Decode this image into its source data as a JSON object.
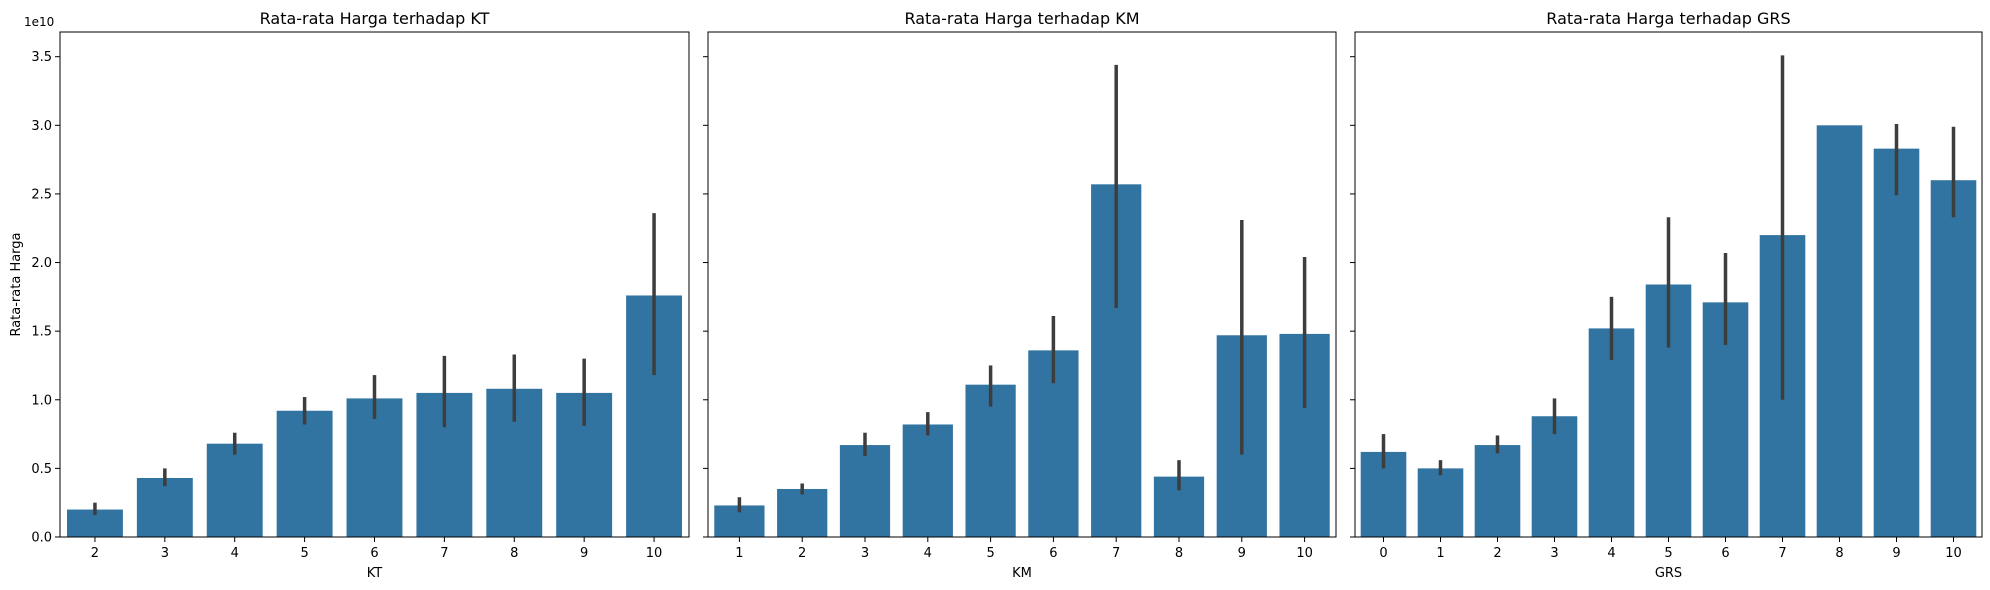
{
  "chart_data": [
    {
      "type": "bar",
      "title": "Rata-rata Harga terhadap KT",
      "xlabel": "KT",
      "ylabel": "Rata-rata Harga",
      "y_offset_label": "1e10",
      "y_scale": 10000000000.0,
      "ylim": [
        0,
        3.68
      ],
      "yticks": [
        "0.0",
        "0.5",
        "1.0",
        "1.5",
        "2.0",
        "2.5",
        "3.0",
        "3.5"
      ],
      "show_ytick_labels": true,
      "bar_color": "#3274a1",
      "errorbar_color": "#3d3d3d",
      "categories": [
        "2",
        "3",
        "4",
        "5",
        "6",
        "7",
        "8",
        "9",
        "10"
      ],
      "values": [
        0.2,
        0.43,
        0.68,
        0.92,
        1.01,
        1.05,
        1.08,
        1.05,
        1.76
      ],
      "ci_low": [
        0.16,
        0.37,
        0.6,
        0.82,
        0.86,
        0.8,
        0.84,
        0.81,
        1.18
      ],
      "ci_high": [
        0.25,
        0.5,
        0.76,
        1.02,
        1.18,
        1.32,
        1.33,
        1.3,
        2.36
      ]
    },
    {
      "type": "bar",
      "title": "Rata-rata Harga terhadap KM",
      "xlabel": "KM",
      "ylabel": "",
      "ylim": [
        0,
        3.68
      ],
      "yticks": [
        "0.0",
        "0.5",
        "1.0",
        "1.5",
        "2.0",
        "2.5",
        "3.0",
        "3.5"
      ],
      "show_ytick_labels": false,
      "bar_color": "#3274a1",
      "errorbar_color": "#3d3d3d",
      "categories": [
        "1",
        "2",
        "3",
        "4",
        "5",
        "6",
        "7",
        "8",
        "9",
        "10"
      ],
      "values": [
        0.23,
        0.35,
        0.67,
        0.82,
        1.11,
        1.36,
        2.57,
        0.44,
        1.47,
        1.48
      ],
      "ci_low": [
        0.18,
        0.31,
        0.59,
        0.74,
        0.95,
        1.12,
        1.67,
        0.34,
        0.6,
        0.94
      ],
      "ci_high": [
        0.29,
        0.39,
        0.76,
        0.91,
        1.25,
        1.61,
        3.44,
        0.56,
        2.31,
        2.04
      ]
    },
    {
      "type": "bar",
      "title": "Rata-rata Harga terhadap GRS",
      "xlabel": "GRS",
      "ylabel": "",
      "ylim": [
        0,
        3.68
      ],
      "yticks": [
        "0.0",
        "0.5",
        "1.0",
        "1.5",
        "2.0",
        "2.5",
        "3.0",
        "3.5"
      ],
      "show_ytick_labels": false,
      "bar_color": "#3274a1",
      "errorbar_color": "#3d3d3d",
      "categories": [
        "0",
        "1",
        "2",
        "3",
        "4",
        "5",
        "6",
        "7",
        "8",
        "9",
        "10"
      ],
      "values": [
        0.62,
        0.5,
        0.67,
        0.88,
        1.52,
        1.84,
        1.71,
        2.2,
        3.0,
        2.83,
        2.6
      ],
      "ci_low": [
        0.5,
        0.45,
        0.61,
        0.75,
        1.29,
        1.38,
        1.4,
        1.0,
        3.0,
        2.49,
        2.33
      ],
      "ci_high": [
        0.75,
        0.56,
        0.74,
        1.01,
        1.75,
        2.33,
        2.07,
        3.51,
        3.0,
        3.01,
        2.99
      ]
    }
  ]
}
